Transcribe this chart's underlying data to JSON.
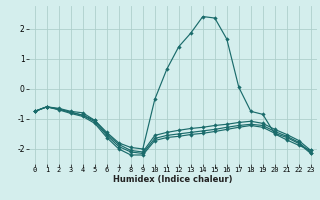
{
  "xlabel": "Humidex (Indice chaleur)",
  "ylabel": "",
  "bg_color": "#d4eeed",
  "grid_color": "#aecfcc",
  "line_color": "#1a6b6b",
  "xlim": [
    -0.5,
    23.5
  ],
  "ylim": [
    -2.5,
    2.75
  ],
  "xticks": [
    0,
    1,
    2,
    3,
    4,
    5,
    6,
    7,
    8,
    9,
    10,
    11,
    12,
    13,
    14,
    15,
    16,
    17,
    18,
    19,
    20,
    21,
    22,
    23
  ],
  "yticks": [
    -2,
    -1,
    0,
    1,
    2
  ],
  "line1_x": [
    0,
    1,
    2,
    3,
    4,
    5,
    6,
    7,
    8,
    9,
    10,
    11,
    12,
    13,
    14,
    15,
    16,
    17,
    18,
    19,
    20,
    21,
    22,
    23
  ],
  "line1_y": [
    -0.75,
    -0.6,
    -0.65,
    -0.75,
    -0.8,
    -1.05,
    -1.45,
    -1.8,
    -1.95,
    -2.0,
    -0.35,
    0.65,
    1.4,
    1.85,
    2.4,
    2.35,
    1.65,
    0.05,
    -0.75,
    -0.85,
    -1.5,
    -1.7,
    -1.88,
    -2.05
  ],
  "line2_x": [
    0,
    1,
    2,
    3,
    4,
    5,
    6,
    7,
    8,
    9,
    10,
    11,
    12,
    13,
    14,
    15,
    16,
    17,
    18,
    19,
    20,
    21,
    22,
    23
  ],
  "line2_y": [
    -0.75,
    -0.6,
    -0.68,
    -0.78,
    -0.88,
    -1.05,
    -1.5,
    -1.85,
    -2.05,
    -2.1,
    -1.55,
    -1.45,
    -1.38,
    -1.32,
    -1.28,
    -1.22,
    -1.18,
    -1.12,
    -1.08,
    -1.15,
    -1.35,
    -1.52,
    -1.72,
    -2.05
  ],
  "line3_x": [
    0,
    1,
    2,
    3,
    4,
    5,
    6,
    7,
    8,
    9,
    10,
    11,
    12,
    13,
    14,
    15,
    16,
    17,
    18,
    19,
    20,
    21,
    22,
    23
  ],
  "line3_y": [
    -0.75,
    -0.6,
    -0.68,
    -0.78,
    -0.88,
    -1.1,
    -1.55,
    -1.92,
    -2.1,
    -2.15,
    -1.65,
    -1.55,
    -1.5,
    -1.45,
    -1.4,
    -1.35,
    -1.28,
    -1.22,
    -1.18,
    -1.22,
    -1.42,
    -1.58,
    -1.78,
    -2.12
  ],
  "line4_x": [
    0,
    1,
    2,
    3,
    4,
    5,
    6,
    7,
    8,
    9,
    10,
    11,
    12,
    13,
    14,
    15,
    16,
    17,
    18,
    19,
    20,
    21,
    22,
    23
  ],
  "line4_y": [
    -0.75,
    -0.6,
    -0.7,
    -0.82,
    -0.92,
    -1.15,
    -1.62,
    -2.0,
    -2.2,
    -2.2,
    -1.72,
    -1.62,
    -1.58,
    -1.52,
    -1.48,
    -1.42,
    -1.35,
    -1.28,
    -1.22,
    -1.28,
    -1.48,
    -1.62,
    -1.82,
    -2.15
  ]
}
